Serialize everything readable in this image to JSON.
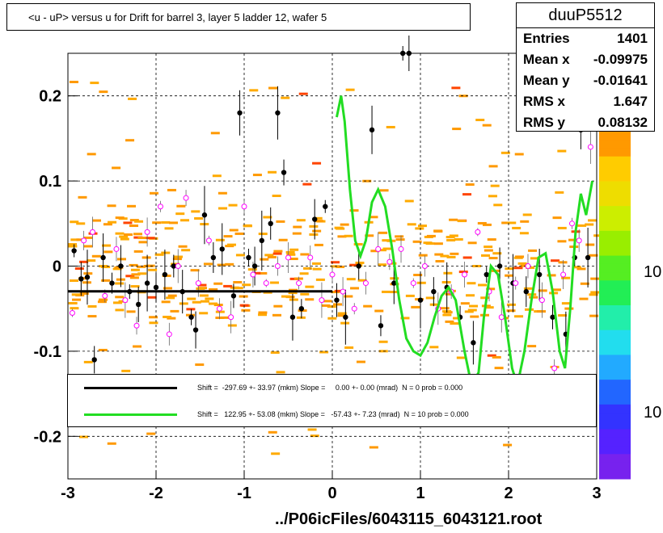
{
  "title": "<u - uP>       versus   u for Drift for barrel 3, layer 5 ladder 12, wafer 5",
  "footer": "../P06icFiles/6043115_6043121.root",
  "stats": {
    "name": "duuP5512",
    "rows": [
      {
        "label": "Entries",
        "value": "1401"
      },
      {
        "label": "Mean x",
        "value": "-0.09975"
      },
      {
        "label": "Mean y",
        "value": "-0.01641"
      },
      {
        "label": "RMS x",
        "value": "1.647"
      },
      {
        "label": "RMS y",
        "value": "0.08132"
      }
    ]
  },
  "palette_labels": [
    "10",
    "10"
  ],
  "legend": [
    {
      "text": "Shift =  -297.69 +- 33.97 (mkm) Slope =     0.00 +- 0.00 (mrad)  N = 0 prob = 0.000",
      "color": "#000000"
    },
    {
      "text": "Shift =   122.95 +- 53.08 (mkm) Slope =   -57.43 +- 7.23 (mrad)  N = 10 prob = 0.000",
      "color": "#22dd22"
    }
  ],
  "chart_data": {
    "type": "scatter",
    "xlim": [
      -3,
      3
    ],
    "ylim": [
      -0.25,
      0.25
    ],
    "x_ticks": [
      "-3",
      "-2",
      "-1",
      "0",
      "1",
      "2",
      "3"
    ],
    "y_ticks": [
      "-0.2",
      "-0.1",
      "0",
      "0.1",
      "0.2"
    ],
    "grid": true,
    "black_points": [
      {
        "x": -2.93,
        "y": 0.018
      },
      {
        "x": -2.85,
        "y": -0.015
      },
      {
        "x": -2.78,
        "y": -0.013
      },
      {
        "x": -2.7,
        "y": -0.11
      },
      {
        "x": -2.6,
        "y": 0.01
      },
      {
        "x": -2.5,
        "y": -0.02
      },
      {
        "x": -2.4,
        "y": 0.0
      },
      {
        "x": -2.3,
        "y": -0.03
      },
      {
        "x": -2.2,
        "y": -0.045
      },
      {
        "x": -2.1,
        "y": -0.02
      },
      {
        "x": -2.0,
        "y": -0.025
      },
      {
        "x": -1.9,
        "y": -0.01
      },
      {
        "x": -1.8,
        "y": 0.0
      },
      {
        "x": -1.7,
        "y": -0.03
      },
      {
        "x": -1.6,
        "y": -0.06
      },
      {
        "x": -1.55,
        "y": -0.075
      },
      {
        "x": -1.45,
        "y": 0.06
      },
      {
        "x": -1.35,
        "y": 0.01
      },
      {
        "x": -1.25,
        "y": 0.02
      },
      {
        "x": -1.12,
        "y": -0.035
      },
      {
        "x": -1.05,
        "y": 0.18
      },
      {
        "x": -0.95,
        "y": 0.01
      },
      {
        "x": -0.88,
        "y": 0.0
      },
      {
        "x": -0.8,
        "y": 0.03
      },
      {
        "x": -0.7,
        "y": 0.05
      },
      {
        "x": -0.62,
        "y": 0.18
      },
      {
        "x": -0.55,
        "y": 0.11
      },
      {
        "x": -0.45,
        "y": -0.06
      },
      {
        "x": -0.35,
        "y": -0.05
      },
      {
        "x": -0.2,
        "y": 0.055
      },
      {
        "x": -0.08,
        "y": 0.07
      },
      {
        "x": 0.05,
        "y": -0.04
      },
      {
        "x": 0.15,
        "y": -0.06
      },
      {
        "x": 0.3,
        "y": 0.0
      },
      {
        "x": 0.45,
        "y": 0.16
      },
      {
        "x": 0.55,
        "y": -0.07
      },
      {
        "x": 0.7,
        "y": -0.02
      },
      {
        "x": 0.8,
        "y": 0.25
      },
      {
        "x": 0.87,
        "y": 0.25
      },
      {
        "x": 1.0,
        "y": -0.04
      },
      {
        "x": 1.15,
        "y": -0.03
      },
      {
        "x": 1.3,
        "y": -0.025
      },
      {
        "x": 1.45,
        "y": -0.06
      },
      {
        "x": 1.6,
        "y": -0.09
      },
      {
        "x": 1.75,
        "y": -0.01
      },
      {
        "x": 1.9,
        "y": 0.0
      },
      {
        "x": 2.05,
        "y": -0.02
      },
      {
        "x": 2.2,
        "y": -0.03
      },
      {
        "x": 2.35,
        "y": -0.01
      },
      {
        "x": 2.5,
        "y": -0.06
      },
      {
        "x": 2.65,
        "y": -0.08
      },
      {
        "x": 2.75,
        "y": 0.01
      },
      {
        "x": 2.82,
        "y": 0.16
      },
      {
        "x": 2.9,
        "y": 0.01
      }
    ],
    "open_points": [
      {
        "x": -2.95,
        "y": -0.055
      },
      {
        "x": -2.82,
        "y": 0.03
      },
      {
        "x": -2.72,
        "y": 0.04
      },
      {
        "x": -2.58,
        "y": -0.035
      },
      {
        "x": -2.45,
        "y": 0.02
      },
      {
        "x": -2.35,
        "y": -0.04
      },
      {
        "x": -2.22,
        "y": -0.07
      },
      {
        "x": -2.1,
        "y": 0.04
      },
      {
        "x": -1.95,
        "y": 0.07
      },
      {
        "x": -1.85,
        "y": -0.08
      },
      {
        "x": -1.75,
        "y": 0.0
      },
      {
        "x": -1.66,
        "y": 0.08
      },
      {
        "x": -1.52,
        "y": -0.02
      },
      {
        "x": -1.4,
        "y": 0.03
      },
      {
        "x": -1.28,
        "y": -0.05
      },
      {
        "x": -1.15,
        "y": -0.06
      },
      {
        "x": -1.0,
        "y": 0.07
      },
      {
        "x": -0.9,
        "y": -0.01
      },
      {
        "x": -0.75,
        "y": -0.02
      },
      {
        "x": -0.62,
        "y": 0.0
      },
      {
        "x": -0.5,
        "y": 0.01
      },
      {
        "x": -0.38,
        "y": -0.02
      },
      {
        "x": -0.25,
        "y": 0.01
      },
      {
        "x": -0.12,
        "y": -0.04
      },
      {
        "x": 0.0,
        "y": -0.01
      },
      {
        "x": 0.12,
        "y": -0.03
      },
      {
        "x": 0.25,
        "y": -0.05
      },
      {
        "x": 0.38,
        "y": -0.02
      },
      {
        "x": 0.52,
        "y": 0.02
      },
      {
        "x": 0.65,
        "y": 0.005
      },
      {
        "x": 0.78,
        "y": 0.02
      },
      {
        "x": 0.92,
        "y": -0.02
      },
      {
        "x": 1.05,
        "y": 0.0
      },
      {
        "x": 1.2,
        "y": -0.05
      },
      {
        "x": 1.35,
        "y": -0.03
      },
      {
        "x": 1.5,
        "y": -0.01
      },
      {
        "x": 1.65,
        "y": 0.04
      },
      {
        "x": 1.78,
        "y": -0.03
      },
      {
        "x": 1.92,
        "y": -0.06
      },
      {
        "x": 2.08,
        "y": -0.02
      },
      {
        "x": 2.22,
        "y": 0.0
      },
      {
        "x": 2.38,
        "y": -0.04
      },
      {
        "x": 2.52,
        "y": -0.12
      },
      {
        "x": 2.62,
        "y": -0.01
      },
      {
        "x": 2.72,
        "y": 0.05
      },
      {
        "x": 2.8,
        "y": 0.03
      },
      {
        "x": 2.93,
        "y": 0.14
      }
    ],
    "fit_black": {
      "x": [
        -3,
        0
      ],
      "y": -0.0297
    },
    "fit_green_points": [
      [
        0.05,
        0.175
      ],
      [
        0.1,
        0.2
      ],
      [
        0.14,
        0.17
      ],
      [
        0.2,
        0.09
      ],
      [
        0.26,
        0.03
      ],
      [
        0.32,
        0.012
      ],
      [
        0.38,
        0.03
      ],
      [
        0.45,
        0.075
      ],
      [
        0.52,
        0.09
      ],
      [
        0.6,
        0.07
      ],
      [
        0.68,
        0.02
      ],
      [
        0.76,
        -0.04
      ],
      [
        0.84,
        -0.085
      ],
      [
        0.92,
        -0.1
      ],
      [
        1.0,
        -0.105
      ],
      [
        1.08,
        -0.09
      ],
      [
        1.16,
        -0.06
      ],
      [
        1.24,
        -0.035
      ],
      [
        1.32,
        -0.025
      ],
      [
        1.4,
        -0.04
      ],
      [
        1.5,
        -0.1
      ],
      [
        1.58,
        -0.14
      ],
      [
        1.66,
        -0.125
      ],
      [
        1.72,
        -0.06
      ],
      [
        1.8,
        0.0
      ],
      [
        1.88,
        -0.01
      ],
      [
        1.96,
        -0.06
      ],
      [
        2.04,
        -0.12
      ],
      [
        2.1,
        -0.14
      ],
      [
        2.18,
        -0.1
      ],
      [
        2.26,
        -0.04
      ],
      [
        2.34,
        0.01
      ],
      [
        2.42,
        0.015
      ],
      [
        2.5,
        -0.03
      ],
      [
        2.58,
        -0.1
      ],
      [
        2.64,
        -0.12
      ],
      [
        2.7,
        -0.05
      ],
      [
        2.76,
        0.04
      ],
      [
        2.82,
        0.085
      ],
      [
        2.88,
        0.06
      ],
      [
        2.95,
        0.1
      ]
    ]
  }
}
